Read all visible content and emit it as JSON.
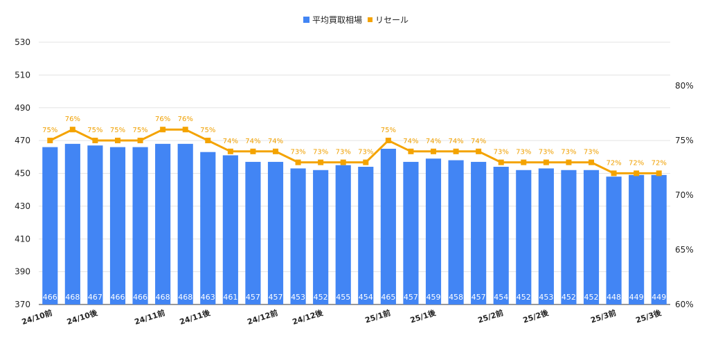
{
  "chart_data": {
    "type": "bar",
    "categories": [
      "24/10前",
      "",
      "24/10後",
      "",
      "",
      "24/11前",
      "",
      "24/11後",
      "",
      "",
      "24/12前",
      "",
      "24/12後",
      "",
      "",
      "25/1前",
      "",
      "25/1後",
      "",
      "",
      "25/2前",
      "",
      "25/2後",
      "",
      "",
      "25/3前",
      "",
      "25/3後"
    ],
    "series": [
      {
        "name": "平均買取相場",
        "type": "bar",
        "axis": "left",
        "color": "#4285f4",
        "values": [
          466,
          468,
          467,
          466,
          466,
          468,
          468,
          463,
          461,
          457,
          457,
          453,
          452,
          455,
          454,
          465,
          457,
          459,
          458,
          457,
          454,
          452,
          453,
          452,
          452,
          448,
          449,
          449
        ]
      },
      {
        "name": "リセール",
        "type": "line",
        "axis": "right",
        "color": "#f4a300",
        "values": [
          75,
          76,
          75,
          75,
          75,
          76,
          76,
          75,
          74,
          74,
          74,
          73,
          73,
          73,
          73,
          75,
          74,
          74,
          74,
          74,
          73,
          73,
          73,
          73,
          73,
          72,
          72,
          72
        ],
        "value_suffix": "%"
      }
    ],
    "y_left": {
      "min": 370,
      "max": 530,
      "ticks": [
        370,
        390,
        410,
        430,
        450,
        470,
        490,
        510,
        530
      ]
    },
    "y_right": {
      "min": 60,
      "max": 80,
      "ticks": [
        "60%",
        "65%",
        "70%",
        "75%",
        "80%"
      ]
    },
    "legend_position": "top-center",
    "grid": true
  }
}
